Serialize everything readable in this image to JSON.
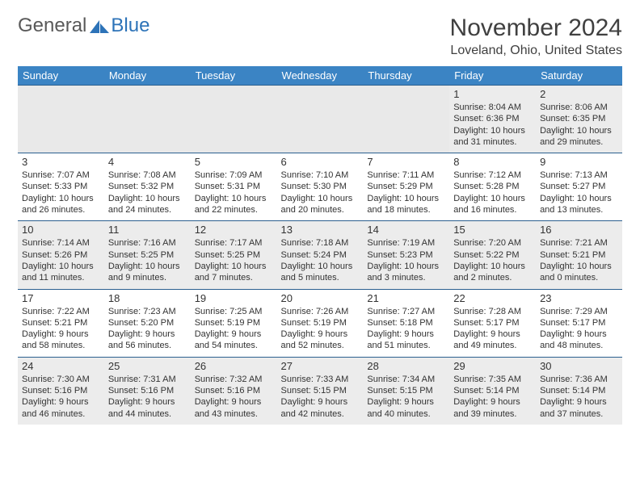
{
  "branding": {
    "word1": "General",
    "word2": "Blue",
    "logo_color": "#2d73b8"
  },
  "header": {
    "month_title": "November 2024",
    "location": "Loveland, Ohio, United States"
  },
  "colors": {
    "header_bg": "#3b84c4",
    "header_text": "#ffffff",
    "row_border": "#2b5f8f",
    "alt_row_bg": "#f0f0f0",
    "text": "#333333"
  },
  "days_of_week": [
    "Sunday",
    "Monday",
    "Tuesday",
    "Wednesday",
    "Thursday",
    "Friday",
    "Saturday"
  ],
  "weeks": [
    [
      {
        "blank": true
      },
      {
        "blank": true
      },
      {
        "blank": true
      },
      {
        "blank": true
      },
      {
        "blank": true
      },
      {
        "day": "1",
        "sunrise": "Sunrise: 8:04 AM",
        "sunset": "Sunset: 6:36 PM",
        "daylight": "Daylight: 10 hours and 31 minutes."
      },
      {
        "day": "2",
        "sunrise": "Sunrise: 8:06 AM",
        "sunset": "Sunset: 6:35 PM",
        "daylight": "Daylight: 10 hours and 29 minutes."
      }
    ],
    [
      {
        "day": "3",
        "sunrise": "Sunrise: 7:07 AM",
        "sunset": "Sunset: 5:33 PM",
        "daylight": "Daylight: 10 hours and 26 minutes."
      },
      {
        "day": "4",
        "sunrise": "Sunrise: 7:08 AM",
        "sunset": "Sunset: 5:32 PM",
        "daylight": "Daylight: 10 hours and 24 minutes."
      },
      {
        "day": "5",
        "sunrise": "Sunrise: 7:09 AM",
        "sunset": "Sunset: 5:31 PM",
        "daylight": "Daylight: 10 hours and 22 minutes."
      },
      {
        "day": "6",
        "sunrise": "Sunrise: 7:10 AM",
        "sunset": "Sunset: 5:30 PM",
        "daylight": "Daylight: 10 hours and 20 minutes."
      },
      {
        "day": "7",
        "sunrise": "Sunrise: 7:11 AM",
        "sunset": "Sunset: 5:29 PM",
        "daylight": "Daylight: 10 hours and 18 minutes."
      },
      {
        "day": "8",
        "sunrise": "Sunrise: 7:12 AM",
        "sunset": "Sunset: 5:28 PM",
        "daylight": "Daylight: 10 hours and 16 minutes."
      },
      {
        "day": "9",
        "sunrise": "Sunrise: 7:13 AM",
        "sunset": "Sunset: 5:27 PM",
        "daylight": "Daylight: 10 hours and 13 minutes."
      }
    ],
    [
      {
        "day": "10",
        "sunrise": "Sunrise: 7:14 AM",
        "sunset": "Sunset: 5:26 PM",
        "daylight": "Daylight: 10 hours and 11 minutes."
      },
      {
        "day": "11",
        "sunrise": "Sunrise: 7:16 AM",
        "sunset": "Sunset: 5:25 PM",
        "daylight": "Daylight: 10 hours and 9 minutes."
      },
      {
        "day": "12",
        "sunrise": "Sunrise: 7:17 AM",
        "sunset": "Sunset: 5:25 PM",
        "daylight": "Daylight: 10 hours and 7 minutes."
      },
      {
        "day": "13",
        "sunrise": "Sunrise: 7:18 AM",
        "sunset": "Sunset: 5:24 PM",
        "daylight": "Daylight: 10 hours and 5 minutes."
      },
      {
        "day": "14",
        "sunrise": "Sunrise: 7:19 AM",
        "sunset": "Sunset: 5:23 PM",
        "daylight": "Daylight: 10 hours and 3 minutes."
      },
      {
        "day": "15",
        "sunrise": "Sunrise: 7:20 AM",
        "sunset": "Sunset: 5:22 PM",
        "daylight": "Daylight: 10 hours and 2 minutes."
      },
      {
        "day": "16",
        "sunrise": "Sunrise: 7:21 AM",
        "sunset": "Sunset: 5:21 PM",
        "daylight": "Daylight: 10 hours and 0 minutes."
      }
    ],
    [
      {
        "day": "17",
        "sunrise": "Sunrise: 7:22 AM",
        "sunset": "Sunset: 5:21 PM",
        "daylight": "Daylight: 9 hours and 58 minutes."
      },
      {
        "day": "18",
        "sunrise": "Sunrise: 7:23 AM",
        "sunset": "Sunset: 5:20 PM",
        "daylight": "Daylight: 9 hours and 56 minutes."
      },
      {
        "day": "19",
        "sunrise": "Sunrise: 7:25 AM",
        "sunset": "Sunset: 5:19 PM",
        "daylight": "Daylight: 9 hours and 54 minutes."
      },
      {
        "day": "20",
        "sunrise": "Sunrise: 7:26 AM",
        "sunset": "Sunset: 5:19 PM",
        "daylight": "Daylight: 9 hours and 52 minutes."
      },
      {
        "day": "21",
        "sunrise": "Sunrise: 7:27 AM",
        "sunset": "Sunset: 5:18 PM",
        "daylight": "Daylight: 9 hours and 51 minutes."
      },
      {
        "day": "22",
        "sunrise": "Sunrise: 7:28 AM",
        "sunset": "Sunset: 5:17 PM",
        "daylight": "Daylight: 9 hours and 49 minutes."
      },
      {
        "day": "23",
        "sunrise": "Sunrise: 7:29 AM",
        "sunset": "Sunset: 5:17 PM",
        "daylight": "Daylight: 9 hours and 48 minutes."
      }
    ],
    [
      {
        "day": "24",
        "sunrise": "Sunrise: 7:30 AM",
        "sunset": "Sunset: 5:16 PM",
        "daylight": "Daylight: 9 hours and 46 minutes."
      },
      {
        "day": "25",
        "sunrise": "Sunrise: 7:31 AM",
        "sunset": "Sunset: 5:16 PM",
        "daylight": "Daylight: 9 hours and 44 minutes."
      },
      {
        "day": "26",
        "sunrise": "Sunrise: 7:32 AM",
        "sunset": "Sunset: 5:16 PM",
        "daylight": "Daylight: 9 hours and 43 minutes."
      },
      {
        "day": "27",
        "sunrise": "Sunrise: 7:33 AM",
        "sunset": "Sunset: 5:15 PM",
        "daylight": "Daylight: 9 hours and 42 minutes."
      },
      {
        "day": "28",
        "sunrise": "Sunrise: 7:34 AM",
        "sunset": "Sunset: 5:15 PM",
        "daylight": "Daylight: 9 hours and 40 minutes."
      },
      {
        "day": "29",
        "sunrise": "Sunrise: 7:35 AM",
        "sunset": "Sunset: 5:14 PM",
        "daylight": "Daylight: 9 hours and 39 minutes."
      },
      {
        "day": "30",
        "sunrise": "Sunrise: 7:36 AM",
        "sunset": "Sunset: 5:14 PM",
        "daylight": "Daylight: 9 hours and 37 minutes."
      }
    ]
  ]
}
